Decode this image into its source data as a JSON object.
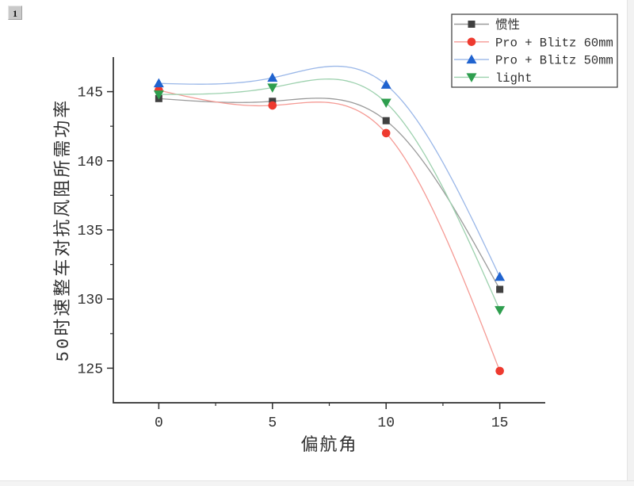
{
  "window": {
    "layer_button": "1"
  },
  "chart_data": {
    "type": "line",
    "curve": "natural-cubic-spline",
    "x": [
      0,
      5,
      10,
      15
    ],
    "series": [
      {
        "name": "惯性",
        "marker": "square",
        "marker_color": "#404040",
        "line_color": "#9a9a9a",
        "values": [
          144.5,
          144.3,
          142.9,
          130.7
        ]
      },
      {
        "name": "Pro + Blitz 60mm",
        "marker": "circle",
        "marker_color": "#ee3a2f",
        "line_color": "#f59a94",
        "values": [
          145.1,
          144.0,
          142.0,
          124.8
        ]
      },
      {
        "name": "Pro + Blitz 50mm",
        "marker": "triangle-up",
        "marker_color": "#2063cf",
        "line_color": "#9ab7e8",
        "values": [
          145.6,
          146.0,
          145.5,
          131.6
        ]
      },
      {
        "name": "light",
        "marker": "triangle-down",
        "marker_color": "#2e9e4e",
        "line_color": "#9dd1ae",
        "values": [
          144.8,
          145.3,
          144.2,
          129.2
        ]
      }
    ],
    "title": "",
    "xlabel": "偏航角",
    "ylabel": "50时速整车对抗风阻所需功率",
    "xlim": [
      -2,
      17
    ],
    "ylim": [
      122.5,
      147.5
    ],
    "x_ticks": [
      0,
      5,
      10,
      15
    ],
    "y_ticks": [
      125,
      130,
      135,
      140,
      145
    ],
    "x_minor_ticks": [
      2.5,
      7.5,
      12.5
    ],
    "y_minor_ticks": [
      127.5,
      132.5,
      137.5,
      142.5
    ],
    "grid": false,
    "legend_position": "top-right",
    "axis_color": "#2f2f2f"
  }
}
